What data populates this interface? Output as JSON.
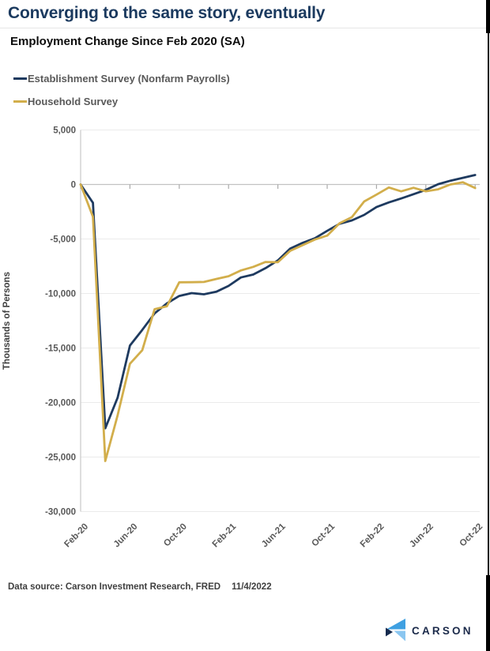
{
  "page": {
    "title": "Converging to the same story, eventually",
    "subtitle": "Employment Change Since Feb 2020 (SA)"
  },
  "footer": {
    "source": "Data source: Carson Investment Research, FRED",
    "date": "11/4/2022"
  },
  "logo": {
    "text": "CARSON",
    "icon_colors": [
      "#3fa0e1",
      "#152a4e",
      "#8ac6f0"
    ]
  },
  "colors": {
    "title_navy": "#1b3a5f",
    "establishment_line": "#1e3a5f",
    "household_line": "#d2ae4b",
    "axis_text": "#595959",
    "gridline": "#ebebeb",
    "zero_axis": "#c2c2c2"
  },
  "chart_data": {
    "type": "line",
    "title": "Employment Change Since Feb 2020 (SA)",
    "xlabel": "",
    "ylabel": "Thousands of Persons",
    "ylim": [
      -30000,
      5000
    ],
    "ytick_interval": 5000,
    "grid": true,
    "legend_position": "top-left",
    "x_tick_labels": [
      "Feb-20",
      "Jun-20",
      "Oct-20",
      "Feb-21",
      "Jun-21",
      "Oct-21",
      "Feb-22",
      "Jun-22",
      "Oct-22"
    ],
    "categories": [
      "Feb-20",
      "Mar-20",
      "Apr-20",
      "May-20",
      "Jun-20",
      "Jul-20",
      "Aug-20",
      "Sep-20",
      "Oct-20",
      "Nov-20",
      "Dec-20",
      "Jan-21",
      "Feb-21",
      "Mar-21",
      "Apr-21",
      "May-21",
      "Jun-21",
      "Jul-21",
      "Aug-21",
      "Sep-21",
      "Oct-21",
      "Nov-21",
      "Dec-21",
      "Jan-22",
      "Feb-22",
      "Mar-22",
      "Apr-22",
      "May-22",
      "Jun-22",
      "Jul-22",
      "Aug-22",
      "Sep-22",
      "Oct-22"
    ],
    "series": [
      {
        "name": "Establishment Survey (Nonfarm Payrolls)",
        "color": "#1e3a5f",
        "values": [
          0,
          -1683,
          -22362,
          -19556,
          -14772,
          -13340,
          -11826,
          -10907,
          -10227,
          -9963,
          -10070,
          -9837,
          -9303,
          -8527,
          -8264,
          -7674,
          -6964,
          -5875,
          -5358,
          -4934,
          -4257,
          -3610,
          -3294,
          -2790,
          -2076,
          -1648,
          -1280,
          -894,
          -496,
          32,
          347,
          610,
          871
        ]
      },
      {
        "name": "Household Survey",
        "color": "#d2ae4b",
        "values": [
          0,
          -2963,
          -25362,
          -21177,
          -16444,
          -15200,
          -11444,
          -11169,
          -8969,
          -8962,
          -8941,
          -8669,
          -8416,
          -7884,
          -7556,
          -7112,
          -7130,
          -6087,
          -5571,
          -5052,
          -4691,
          -3557,
          -3000,
          -1558,
          -924,
          -274,
          -627,
          -306,
          -621,
          -442,
          0,
          204,
          -328
        ]
      }
    ]
  }
}
